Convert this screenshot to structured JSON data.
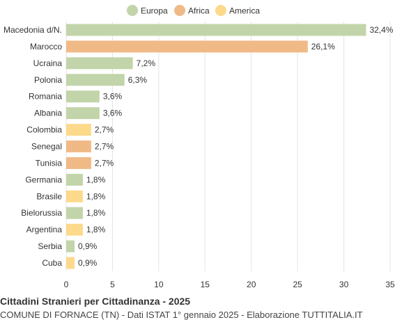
{
  "chart_data": {
    "type": "bar",
    "orientation": "horizontal",
    "title": "Cittadini Stranieri per Cittadinanza - 2025",
    "subtitle": "COMUNE DI FORNACE (TN) - Dati ISTAT 1° gennaio 2025 - Elaborazione TUTTITALIA.IT",
    "legend": {
      "position": "top",
      "entries": [
        {
          "name": "Europa",
          "color": "#c2d4a9"
        },
        {
          "name": "Africa",
          "color": "#f0ba87"
        },
        {
          "name": "America",
          "color": "#fdd98b"
        }
      ]
    },
    "categories": [
      "Macedonia d/N.",
      "Marocco",
      "Ucraina",
      "Polonia",
      "Romania",
      "Albania",
      "Colombia",
      "Senegal",
      "Tunisia",
      "Germania",
      "Brasile",
      "Bielorussia",
      "Argentina",
      "Serbia",
      "Cuba"
    ],
    "values": [
      32.4,
      26.1,
      7.2,
      6.3,
      3.6,
      3.6,
      2.7,
      2.7,
      2.7,
      1.8,
      1.8,
      1.8,
      1.8,
      0.9,
      0.9
    ],
    "labels": [
      "32,4%",
      "26,1%",
      "7,2%",
      "6,3%",
      "3,6%",
      "3,6%",
      "2,7%",
      "2,7%",
      "2,7%",
      "1,8%",
      "1,8%",
      "1,8%",
      "1,8%",
      "0,9%",
      "0,9%"
    ],
    "groups": [
      "Europa",
      "Africa",
      "Europa",
      "Europa",
      "Europa",
      "Europa",
      "America",
      "Africa",
      "Africa",
      "Europa",
      "America",
      "Europa",
      "America",
      "Europa",
      "America"
    ],
    "xlim": [
      0,
      35
    ],
    "xticks": [
      "0",
      "5",
      "10",
      "15",
      "20",
      "25",
      "30",
      "35"
    ],
    "grid": true
  }
}
